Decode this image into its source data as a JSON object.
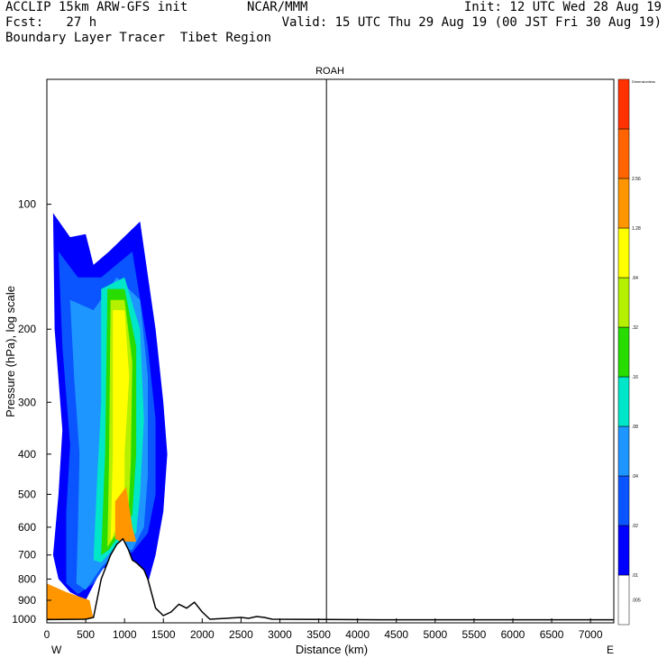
{
  "header": {
    "line1_left": "ACCLIP 15km ARW-GFS init",
    "line1_center": "NCAR/MMM",
    "line1_right": "Init: 12 UTC Wed 28 Aug 19",
    "line2_left": "Fcst:   27 h",
    "line2_right": "Valid: 15 UTC Thu 29 Aug 19 (00 JST Fri 30 Aug 19)",
    "line3_left": "Boundary Layer Tracer  Tibet Region"
  },
  "chart_data": {
    "type": "contour-cross-section",
    "title": "ROAH",
    "xlabel": "Distance (km)",
    "ylabel": "Pressure (hPa), log scale",
    "x_ticks": [
      "0",
      "500",
      "1000",
      "1500",
      "2000",
      "2500",
      "3000",
      "3500",
      "4000",
      "4500",
      "5000",
      "5500",
      "6000",
      "6500",
      "7000"
    ],
    "x_ends": {
      "left": "W",
      "right": "E"
    },
    "y_ticks": [
      "100",
      "200",
      "300",
      "400",
      "500",
      "600",
      "700",
      "800",
      "900",
      "1000"
    ],
    "xlim": [
      0,
      7300
    ],
    "ylim_hpa": [
      1020,
      50
    ],
    "y_scale": "log",
    "marker_line_km": 3600,
    "colorbar": {
      "top_label": "Dimensionless",
      "levels": [
        ".005",
        ".01",
        ".02",
        ".04",
        ".08",
        ".16",
        ".32",
        ".64",
        "1.28",
        "2.56"
      ],
      "colors": [
        "#ffffff",
        "#0000ff",
        "#0a55ff",
        "#1e96ff",
        "#00e6c8",
        "#28dc00",
        "#b4f000",
        "#ffff00",
        "#ff9600",
        "#ff6400",
        "#ff3200"
      ]
    },
    "terrain_km_hpa": [
      [
        0,
        1002
      ],
      [
        500,
        1000
      ],
      [
        600,
        990
      ],
      [
        700,
        800
      ],
      [
        820,
        700
      ],
      [
        900,
        660
      ],
      [
        980,
        640
      ],
      [
        1050,
        680
      ],
      [
        1100,
        720
      ],
      [
        1150,
        730
      ],
      [
        1250,
        760
      ],
      [
        1300,
        800
      ],
      [
        1400,
        940
      ],
      [
        1500,
        980
      ],
      [
        1600,
        960
      ],
      [
        1700,
        920
      ],
      [
        1800,
        940
      ],
      [
        1900,
        910
      ],
      [
        2000,
        960
      ],
      [
        2100,
        1000
      ],
      [
        2500,
        990
      ],
      [
        2600,
        995
      ],
      [
        2700,
        985
      ],
      [
        2800,
        990
      ],
      [
        2900,
        1000
      ],
      [
        4300,
        1003
      ],
      [
        7300,
        1003
      ]
    ],
    "tracer_plume": [
      {
        "level": ".01",
        "color": "#0000ff",
        "poly": [
          [
            80,
            105
          ],
          [
            300,
            120
          ],
          [
            500,
            118
          ],
          [
            600,
            140
          ],
          [
            800,
            130
          ],
          [
            1200,
            110
          ],
          [
            1400,
            200
          ],
          [
            1500,
            300
          ],
          [
            1550,
            400
          ],
          [
            1500,
            550
          ],
          [
            1400,
            700
          ],
          [
            1300,
            820
          ],
          [
            1000,
            700
          ],
          [
            700,
            760
          ],
          [
            500,
            900
          ],
          [
            300,
            860
          ],
          [
            150,
            800
          ],
          [
            80,
            700
          ],
          [
            150,
            500
          ],
          [
            200,
            350
          ],
          [
            100,
            200
          ]
        ]
      },
      {
        "level": ".02",
        "color": "#0a55ff",
        "poly": [
          [
            150,
            130
          ],
          [
            400,
            150
          ],
          [
            700,
            150
          ],
          [
            1100,
            130
          ],
          [
            1300,
            220
          ],
          [
            1400,
            330
          ],
          [
            1400,
            500
          ],
          [
            1300,
            620
          ],
          [
            1100,
            690
          ],
          [
            800,
            720
          ],
          [
            600,
            820
          ],
          [
            400,
            870
          ],
          [
            250,
            820
          ],
          [
            250,
            550
          ],
          [
            300,
            380
          ],
          [
            200,
            220
          ]
        ]
      },
      {
        "level": ".04",
        "color": "#1e96ff",
        "poly": [
          [
            300,
            170
          ],
          [
            600,
            180
          ],
          [
            900,
            150
          ],
          [
            1200,
            170
          ],
          [
            1300,
            260
          ],
          [
            1300,
            450
          ],
          [
            1250,
            600
          ],
          [
            1100,
            680
          ],
          [
            900,
            690
          ],
          [
            700,
            750
          ],
          [
            500,
            850
          ],
          [
            380,
            820
          ],
          [
            400,
            600
          ],
          [
            420,
            400
          ],
          [
            350,
            260
          ]
        ]
      },
      {
        "level": ".08",
        "color": "#00e6c8",
        "poly": [
          [
            700,
            160
          ],
          [
            1000,
            150
          ],
          [
            1200,
            200
          ],
          [
            1250,
            330
          ],
          [
            1200,
            500
          ],
          [
            1150,
            620
          ],
          [
            1000,
            650
          ],
          [
            850,
            680
          ],
          [
            700,
            730
          ],
          [
            600,
            720
          ],
          [
            650,
            450
          ],
          [
            700,
            300
          ]
        ]
      },
      {
        "level": ".16",
        "color": "#28dc00",
        "poly": [
          [
            780,
            160
          ],
          [
            1000,
            160
          ],
          [
            1150,
            220
          ],
          [
            1150,
            400
          ],
          [
            1100,
            560
          ],
          [
            950,
            620
          ],
          [
            800,
            680
          ],
          [
            700,
            700
          ],
          [
            750,
            400
          ]
        ]
      },
      {
        "level": ".32",
        "color": "#b4f000",
        "poly": [
          [
            820,
            170
          ],
          [
            1000,
            170
          ],
          [
            1100,
            240
          ],
          [
            1080,
            420
          ],
          [
            1050,
            560
          ],
          [
            900,
            620
          ],
          [
            780,
            670
          ],
          [
            800,
            420
          ]
        ]
      },
      {
        "level": ".64",
        "color": "#ffff00",
        "poly": [
          [
            850,
            180
          ],
          [
            1000,
            180
          ],
          [
            1060,
            260
          ],
          [
            1000,
            400
          ],
          [
            1000,
            540
          ],
          [
            900,
            600
          ],
          [
            820,
            650
          ],
          [
            850,
            400
          ]
        ]
      },
      {
        "level": "1.28",
        "color": "#ff9600",
        "poly": [
          [
            0,
            820
          ],
          [
            250,
            860
          ],
          [
            550,
            900
          ],
          [
            600,
            1000
          ],
          [
            0,
            1000
          ]
        ]
      },
      {
        "level": "1.28b",
        "color": "#ff9600",
        "poly": [
          [
            880,
            520
          ],
          [
            1020,
            480
          ],
          [
            1100,
            600
          ],
          [
            1150,
            650
          ],
          [
            950,
            650
          ],
          [
            880,
            640
          ]
        ]
      }
    ]
  }
}
